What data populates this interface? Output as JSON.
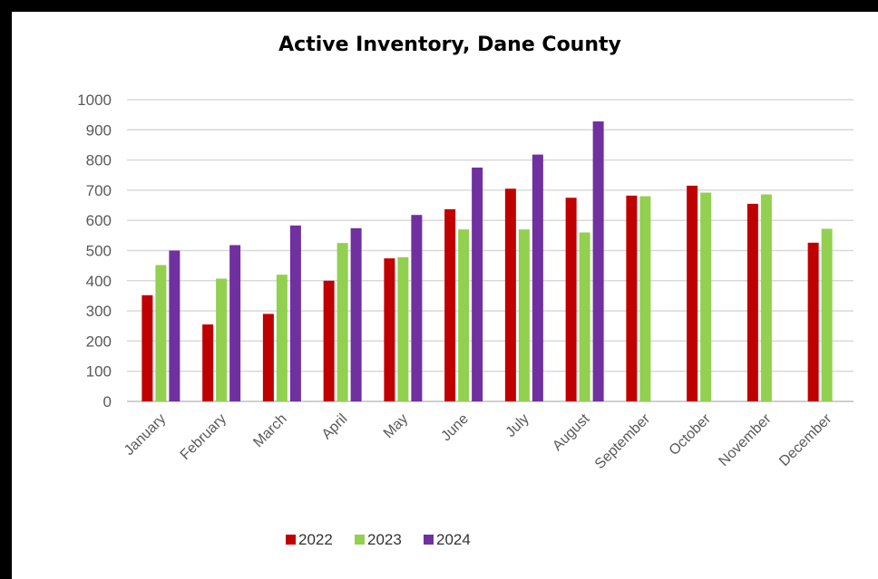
{
  "chart_data": {
    "type": "bar",
    "title": "Active Inventory, Dane County",
    "xlabel": "",
    "ylabel": "",
    "ylim": [
      0,
      1000
    ],
    "yticks": [
      0,
      100,
      200,
      300,
      400,
      500,
      600,
      700,
      800,
      900,
      1000
    ],
    "grid": true,
    "legend_position": "bottom",
    "categories": [
      "January",
      "February",
      "March",
      "April",
      "May",
      "June",
      "July",
      "August",
      "September",
      "October",
      "November",
      "December"
    ],
    "series": [
      {
        "name": "2022",
        "color": "#c00000",
        "values": [
          352,
          255,
          290,
          400,
          474,
          637,
          705,
          675,
          682,
          715,
          655,
          526
        ]
      },
      {
        "name": "2023",
        "color": "#92d050",
        "values": [
          452,
          407,
          420,
          525,
          478,
          570,
          570,
          560,
          680,
          692,
          686,
          572
        ]
      },
      {
        "name": "2024",
        "color": "#7030a0",
        "values": [
          500,
          518,
          583,
          574,
          618,
          775,
          818,
          928,
          null,
          null,
          null,
          null
        ]
      }
    ]
  }
}
